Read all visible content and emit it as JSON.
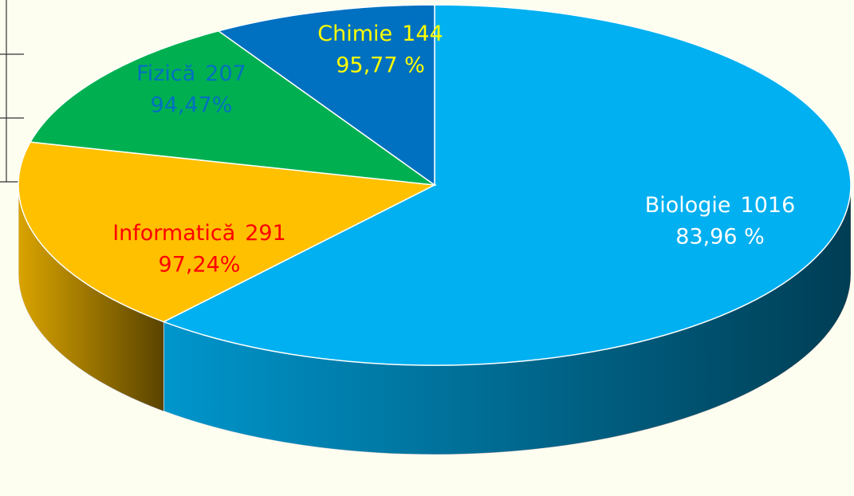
{
  "chart_data": {
    "type": "pie",
    "categories": [
      "Biologie",
      "Informatică",
      "Fizică",
      "Chimie"
    ],
    "values": [
      1016,
      291,
      207,
      144
    ],
    "rate_labels": [
      "83,96 %",
      "97,24%",
      "94,47%",
      "95,77 %"
    ],
    "colors": [
      "#00b0f0",
      "#ffc000",
      "#00b050",
      "#0070c0"
    ],
    "label_colors": [
      "#ffffff",
      "#ff0000",
      "#0070c0",
      "#ffff00"
    ]
  }
}
